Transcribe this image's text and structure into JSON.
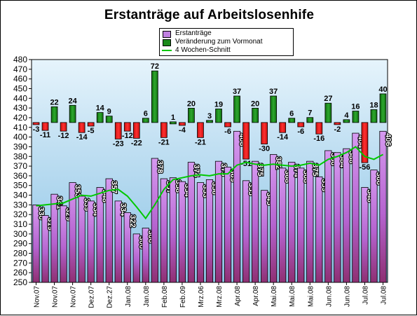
{
  "title": "Erstanträge auf Arbeitslosenhife",
  "legend": {
    "items": [
      {
        "label": "Erstanträge",
        "color": "#c080e0"
      },
      {
        "label": "Veränderung zum Vormonat",
        "color": "#1a8a1a"
      },
      {
        "label": "4 Wochen-Schnitt",
        "color": "#00c800"
      }
    ]
  },
  "chart_data": {
    "type": "bar",
    "title": "Erstanträge auf Arbeitslosenhife",
    "ylim": [
      250,
      480
    ],
    "yticks": [
      250,
      260,
      270,
      280,
      290,
      300,
      310,
      320,
      330,
      340,
      350,
      360,
      370,
      380,
      390,
      400,
      410,
      420,
      430,
      440,
      450,
      460,
      470,
      480
    ],
    "grid": false,
    "legend_position": "top-center",
    "x_tick_labels": [
      "Nov.07",
      "Nov.07",
      "Nov.07",
      "Dez.07",
      "Dez.27",
      "Jan.08",
      "Jan.08",
      "Feb.08",
      "Feb.09",
      "Mrz.06",
      "Mrz.08",
      "Apr.08",
      "Apr.08",
      "Mai.08",
      "Mai.08",
      "Mai.08",
      "Jun.08",
      "Jun.08",
      "Jul.08",
      "Jul.08"
    ],
    "series": [
      {
        "name": "Erstanträge",
        "values": [
          330,
          319,
          341,
          329,
          353,
          339,
          334,
          348,
          357,
          334,
          322,
          300,
          306,
          378,
          357,
          358,
          354,
          374,
          353,
          356,
          375,
          369,
          406,
          355,
          375,
          345,
          382,
          368,
          374,
          368,
          375,
          359,
          386,
          384,
          388,
          404,
          348,
          366,
          406
        ]
      },
      {
        "name": "Veränderung zum Vormonat",
        "values": [
          -3,
          -11,
          22,
          -12,
          24,
          -14,
          -5,
          14,
          9,
          -23,
          -12,
          -22,
          6,
          72,
          -21,
          1,
          -4,
          20,
          -21,
          3,
          19,
          -6,
          37,
          -51,
          20,
          -30,
          37,
          -14,
          6,
          -6,
          7,
          -16,
          27,
          -2,
          4,
          16,
          -56,
          18,
          40
        ]
      },
      {
        "name": "4 Wochen-Schnitt",
        "values": [
          329,
          330,
          331,
          332,
          336,
          340,
          339,
          342,
          345,
          346,
          339,
          328,
          316,
          330,
          346,
          356,
          358,
          360,
          361,
          360,
          362,
          362,
          371,
          374,
          372,
          371,
          372,
          371,
          370,
          371,
          373,
          371,
          377,
          380,
          384,
          390,
          380,
          377,
          382
        ]
      }
    ]
  }
}
